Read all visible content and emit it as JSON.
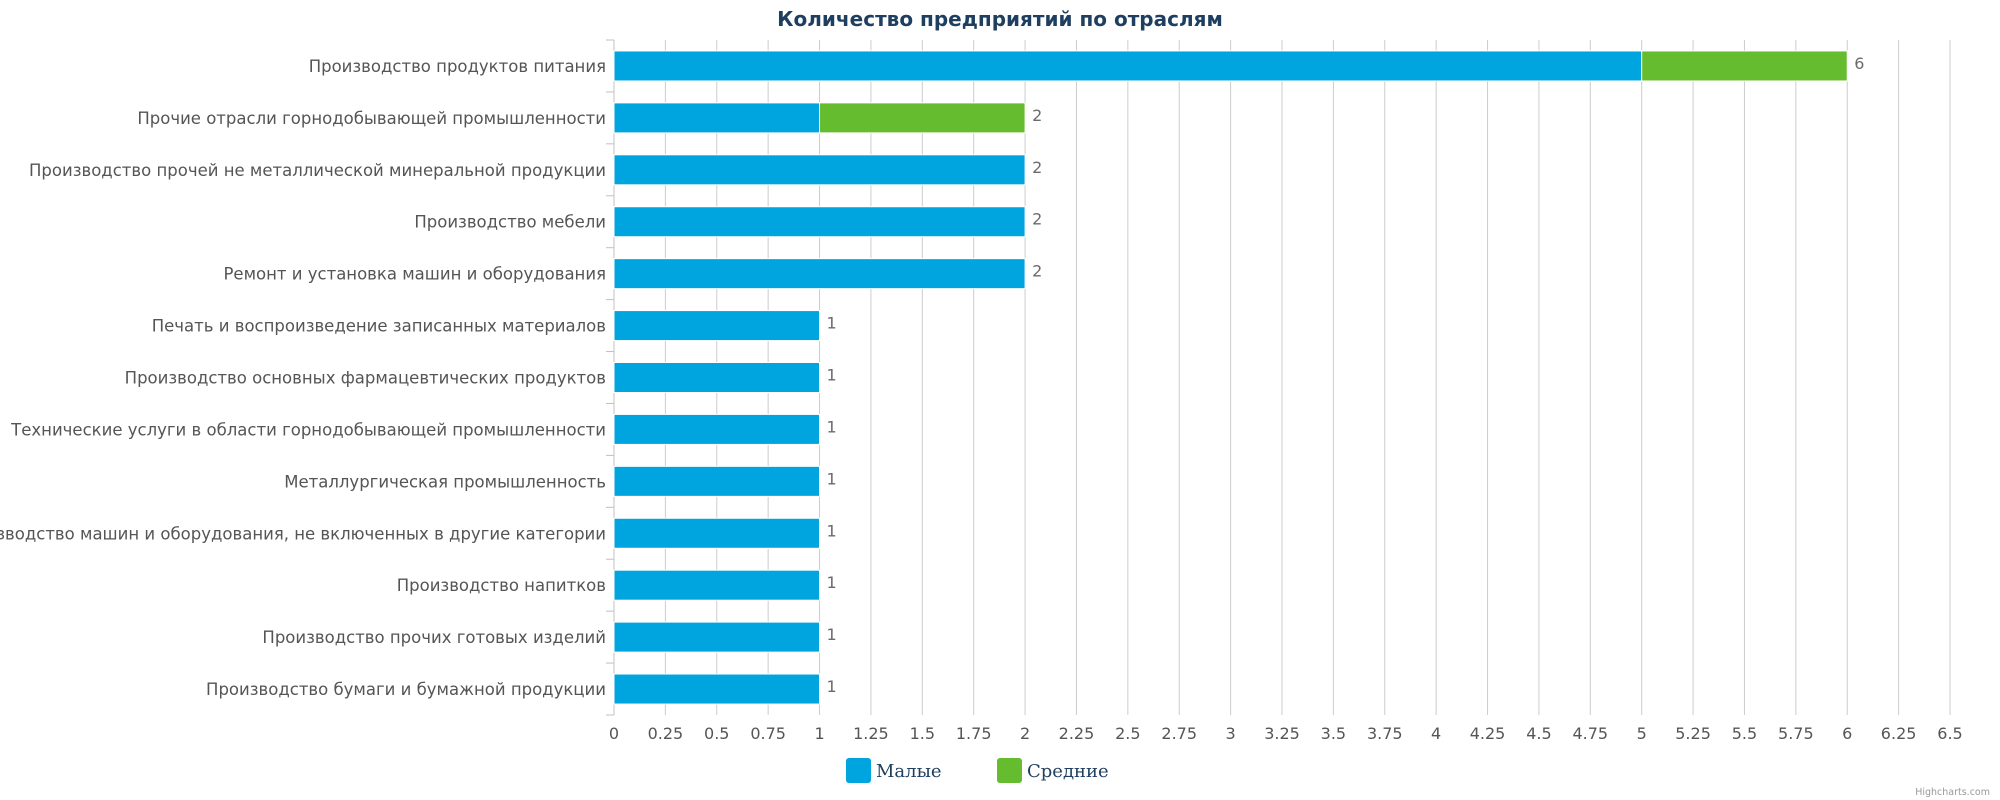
{
  "credits": "Highcharts.com",
  "chart_data": {
    "type": "bar",
    "orientation": "horizontal",
    "stacked": true,
    "title": "Количество предприятий по отраслям",
    "xlabel": "",
    "ylabel": "",
    "categories": [
      "Производство продуктов питания",
      "Прочие отрасли горнодобывающей промышленности",
      "Производство прочей не металлической минеральной продукции",
      "Производство мебели",
      "Ремонт и установка машин и оборудования",
      "Печать и воспроизведение записанных материалов",
      "Производство основных фармацевтических продуктов",
      "Технические услуги в области горнодобывающей промышленности",
      "Металлургическая промышленность",
      "Производство машин и оборудования, не включенных в другие категории",
      "Производство напитков",
      "Производство прочих готовых изделий",
      "Производство бумаги и бумажной продукции"
    ],
    "series": [
      {
        "name": "Малые",
        "color": "#00a5e0",
        "values": [
          5,
          1,
          2,
          2,
          2,
          1,
          1,
          1,
          1,
          1,
          1,
          1,
          1
        ]
      },
      {
        "name": "Средние",
        "color": "#64bc2e",
        "values": [
          1,
          1,
          0,
          0,
          0,
          0,
          0,
          0,
          0,
          0,
          0,
          0,
          0
        ]
      }
    ],
    "totals": [
      6,
      2,
      2,
      2,
      2,
      1,
      1,
      1,
      1,
      1,
      1,
      1,
      1
    ],
    "xlim": [
      0,
      6.5
    ],
    "tick_interval": 0.25,
    "tick_labels": [
      "0",
      "0.25",
      "0.5",
      "0.75",
      "1",
      "1.25",
      "1.5",
      "1.75",
      "2",
      "2.25",
      "2.5",
      "2.75",
      "3",
      "3.25",
      "3.5",
      "3.75",
      "4",
      "4.25",
      "4.5",
      "4.75",
      "5",
      "5.25",
      "5.5",
      "5.75",
      "6",
      "6.25",
      "6.5"
    ],
    "grid": true,
    "legend_position": "bottom-center"
  }
}
